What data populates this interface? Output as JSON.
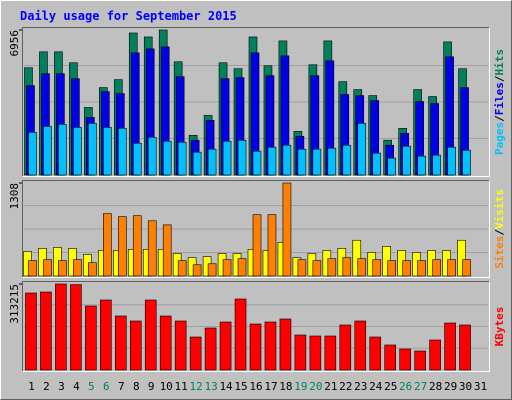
{
  "title": "Daily usage for September 2015",
  "legend_separator": "/",
  "chart_data": [
    {
      "type": "bar",
      "ylim": [
        0,
        6956
      ],
      "yticks": [
        6956
      ],
      "series": [
        {
          "name": "Hits",
          "color": "#00805c",
          "values": [
            5146,
            5908,
            5908,
            5384,
            3240,
            4193,
            4574,
            6813,
            6622,
            6956,
            5431,
            1906,
            2859,
            5384,
            5098,
            6622,
            5241,
            6432,
            2096,
            5288,
            6432,
            4478,
            4097,
            3811,
            1668,
            2239,
            4097,
            3764,
            6384,
            5098,
            0
          ]
        },
        {
          "name": "Files",
          "color": "#0000e6",
          "values": [
            4288,
            4859,
            4859,
            4621,
            2763,
            4002,
            3907,
            5860,
            6050,
            6146,
            4716,
            1667,
            2620,
            4621,
            4669,
            5860,
            4764,
            5717,
            1858,
            4764,
            5479,
            3859,
            3811,
            3573,
            1429,
            2001,
            3525,
            3430,
            5669,
            4192,
            0
          ]
        },
        {
          "name": "Pages",
          "color": "#00c0ff",
          "values": [
            2049,
            2334,
            2430,
            2287,
            2477,
            2287,
            2239,
            1524,
            1810,
            1620,
            1572,
            1096,
            1239,
            1620,
            1667,
            1143,
            1334,
            1429,
            1239,
            1239,
            1286,
            1429,
            2477,
            1048,
            810,
            1382,
            905,
            953,
            1334,
            1191,
            0
          ]
        }
      ]
    },
    {
      "type": "bar",
      "ylim": [
        0,
        1308
      ],
      "yticks": [
        1308
      ],
      "series": [
        {
          "name": "Visits",
          "color": "#ffff00",
          "values": [
            345,
            388,
            402,
            388,
            302,
            359,
            359,
            374,
            374,
            374,
            316,
            259,
            273,
            316,
            316,
            374,
            359,
            474,
            259,
            316,
            359,
            388,
            503,
            331,
            417,
            359,
            331,
            359,
            359,
            503,
            0
          ]
        },
        {
          "name": "Sites",
          "color": "#ff8000",
          "values": [
            216,
            230,
            216,
            230,
            187,
            877,
            834,
            848,
            776,
            719,
            216,
            158,
            172,
            230,
            244,
            862,
            862,
            1308,
            230,
            216,
            244,
            259,
            244,
            230,
            216,
            216,
            216,
            230,
            230,
            230,
            0
          ]
        }
      ]
    },
    {
      "type": "bar",
      "ylim": [
        0,
        313215
      ],
      "yticks": [
        313215
      ],
      "categories": [
        "1",
        "2",
        "3",
        "4",
        "5",
        "6",
        "7",
        "8",
        "9",
        "10",
        "11",
        "12",
        "13",
        "14",
        "15",
        "16",
        "17",
        "18",
        "19",
        "20",
        "21",
        "22",
        "23",
        "24",
        "25",
        "26",
        "27",
        "28",
        "29",
        "30",
        "31"
      ],
      "category_colors": [
        "#000000",
        "#000000",
        "#000000",
        "#000000",
        "#008060",
        "#008060",
        "#000000",
        "#000000",
        "#000000",
        "#000000",
        "#000000",
        "#008060",
        "#008060",
        "#000000",
        "#000000",
        "#000000",
        "#000000",
        "#000000",
        "#008060",
        "#008060",
        "#000000",
        "#000000",
        "#000000",
        "#000000",
        "#000000",
        "#008060",
        "#008060",
        "#000000",
        "#000000",
        "#000000",
        "#000000"
      ],
      "series": [
        {
          "name": "KBytes",
          "color": "#ff0000",
          "values": [
            280434,
            284076,
            313215,
            311000,
            233088,
            254940,
            196668,
            178458,
            254940,
            196668,
            178458,
            120186,
            152964,
            174816,
            258582,
            167532,
            174816,
            185742,
            127470,
            123828,
            123828,
            163890,
            178458,
            120186,
            91050,
            76482,
            69198,
            109260,
            171174,
            163890,
            0
          ]
        }
      ]
    }
  ]
}
